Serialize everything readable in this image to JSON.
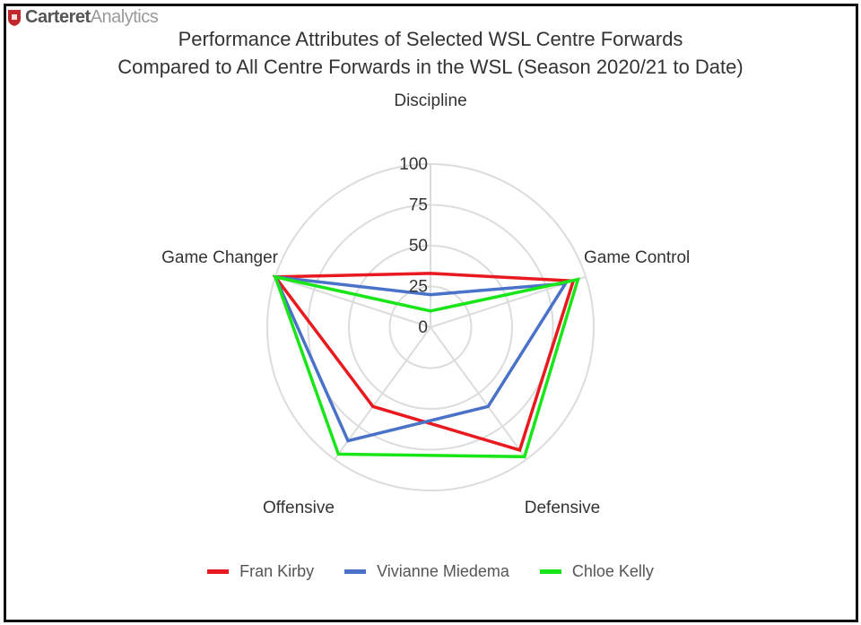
{
  "brand": {
    "name_bold": "Carteret",
    "name_light": "Analytics"
  },
  "chart_data": {
    "type": "radar",
    "title_line1": "Performance Attributes of Selected WSL Centre Forwards",
    "title_line2": "Compared to All Centre Forwards in the WSL (Season 2020/21 to Date)",
    "axes": [
      "Discipline",
      "Game Control",
      "Defensive",
      "Offensive",
      "Game Changer"
    ],
    "r_ticks": [
      "0",
      "25",
      "50",
      "75",
      "100"
    ],
    "r_range": [
      0,
      100
    ],
    "grid": true,
    "legend_position": "bottom",
    "series": [
      {
        "name": "Fran Kirby",
        "color": "#e8191f",
        "values": [
          33,
          92,
          93,
          60,
          100
        ]
      },
      {
        "name": "Vivianne Miedema",
        "color": "#4a72c8",
        "values": [
          20,
          87,
          60,
          86,
          100
        ]
      },
      {
        "name": "Chloe Kelly",
        "color": "#19e619",
        "values": [
          10,
          95,
          98,
          96,
          100
        ]
      }
    ]
  }
}
